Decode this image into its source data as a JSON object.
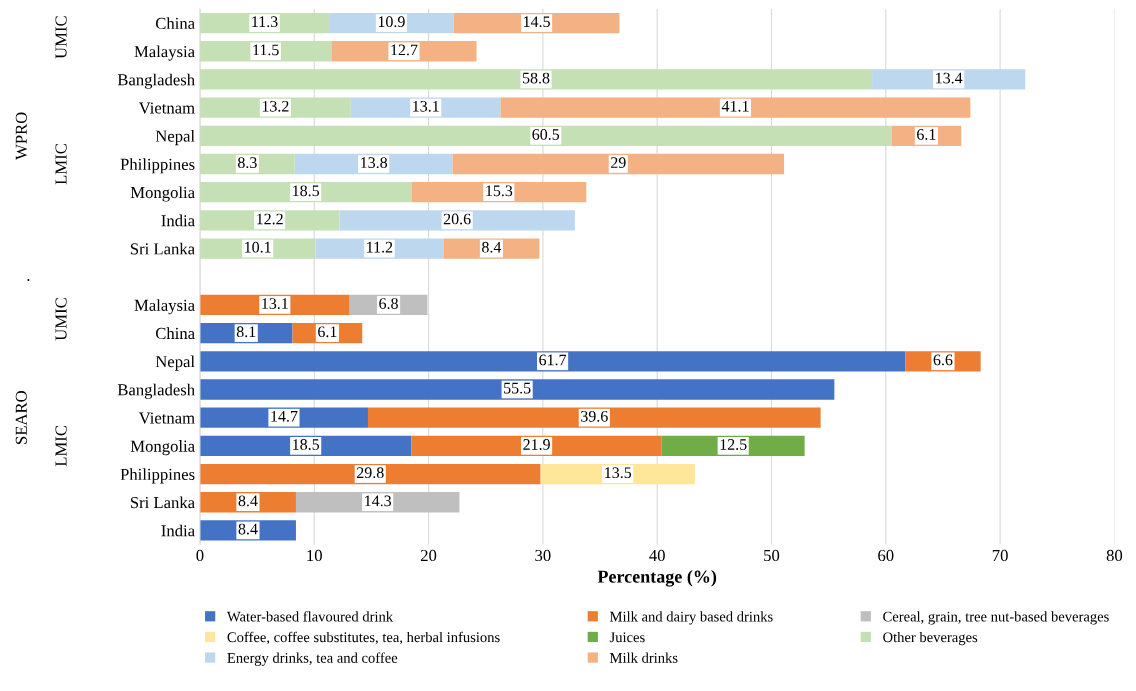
{
  "chart_data": {
    "type": "bar",
    "orientation": "horizontal",
    "stacked": true,
    "categories": [
      "China",
      "Malaysia",
      "Bangladesh",
      "Vietnam",
      "Nepal",
      "Philippines",
      "Mongolia",
      "India",
      "Sri Lanka",
      null,
      "Malaysia",
      "China",
      "Nepal",
      "Bangladesh",
      "Vietnam",
      "Mongolia",
      "Philippines",
      "Sri Lanka",
      "India"
    ],
    "series": [
      {
        "name": "Water-based flavoured drink",
        "color": "#4472c4",
        "values": [
          null,
          null,
          null,
          null,
          null,
          null,
          null,
          null,
          null,
          null,
          null,
          8.1,
          61.7,
          55.5,
          14.7,
          18.5,
          null,
          null,
          8.4
        ]
      },
      {
        "name": "Milk and dairy based drinks",
        "color": "#ed7d31",
        "values": [
          null,
          null,
          null,
          null,
          null,
          null,
          null,
          null,
          null,
          null,
          13.1,
          6.1,
          6.6,
          null,
          39.6,
          21.9,
          29.8,
          8.4,
          null
        ]
      },
      {
        "name": "Cereal, grain, tree nut-based beverages",
        "color": "#bfbfbf",
        "values": [
          null,
          null,
          null,
          null,
          null,
          null,
          null,
          null,
          null,
          null,
          6.8,
          null,
          null,
          null,
          null,
          null,
          null,
          14.3,
          null
        ]
      },
      {
        "name": "Coffee, coffee substitutes, tea, herbal infusions",
        "color": "#ffe699",
        "values": [
          null,
          null,
          null,
          null,
          null,
          null,
          null,
          null,
          null,
          null,
          null,
          null,
          null,
          null,
          null,
          null,
          13.5,
          null,
          null
        ]
      },
      {
        "name": "Juices",
        "color": "#70ad47",
        "values": [
          null,
          null,
          null,
          null,
          null,
          null,
          null,
          null,
          null,
          null,
          null,
          null,
          null,
          null,
          null,
          12.5,
          null,
          null,
          null
        ]
      },
      {
        "name": "Other beverages",
        "color": "#c5e0b4",
        "values": [
          11.3,
          11.5,
          58.8,
          13.2,
          60.5,
          8.3,
          18.5,
          12.2,
          10.1,
          null,
          null,
          null,
          null,
          null,
          null,
          null,
          null,
          null,
          null
        ]
      },
      {
        "name": "Energy drinks, tea and coffee",
        "color": "#bdd7ee",
        "values": [
          10.9,
          null,
          13.4,
          13.1,
          null,
          13.8,
          null,
          20.6,
          11.2,
          null,
          null,
          null,
          null,
          null,
          null,
          null,
          null,
          null,
          null
        ]
      },
      {
        "name": "Milk drinks",
        "color": "#f4b183",
        "values": [
          14.5,
          12.7,
          null,
          41.1,
          6.1,
          29,
          15.3,
          null,
          8.4,
          null,
          null,
          null,
          null,
          null,
          null,
          null,
          null,
          null,
          null
        ]
      }
    ],
    "xlabel": "Percentage (%)",
    "xlim": [
      0,
      80
    ],
    "xticks": [
      0,
      10,
      20,
      30,
      40,
      50,
      60,
      70,
      80
    ],
    "grid": "x",
    "legend": "bottom",
    "data_labels": true,
    "annotations": [
      "WPRO",
      "UMIC",
      "LMIC",
      ".",
      "SEARO",
      "UMIC",
      "LMIC"
    ]
  }
}
